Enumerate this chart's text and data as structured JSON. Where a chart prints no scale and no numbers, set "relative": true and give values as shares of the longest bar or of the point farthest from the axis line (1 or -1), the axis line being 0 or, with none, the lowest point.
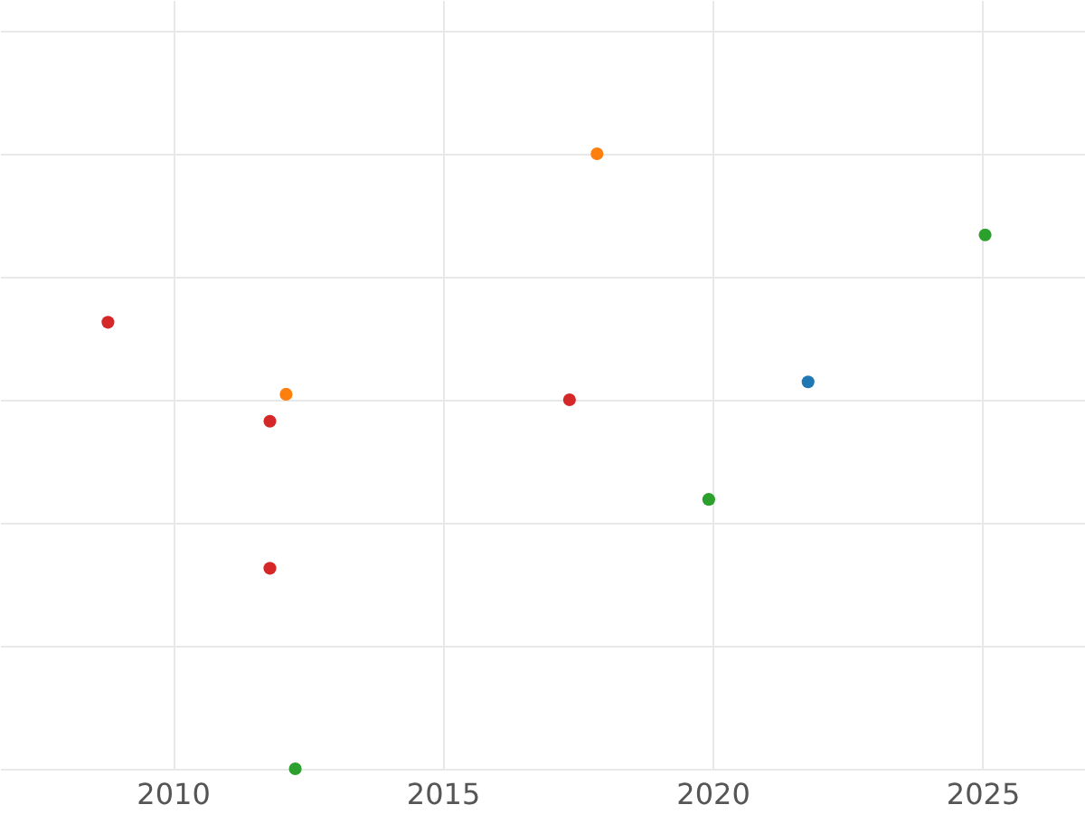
{
  "chart_data": {
    "type": "scatter",
    "relative": true,
    "xlim": [
      2006.8,
      2026.9
    ],
    "xticks": [
      2010,
      2015,
      2020,
      2025
    ],
    "grid": true,
    "legend": false,
    "marker": "circle",
    "series": [
      {
        "color": "#1f77b4",
        "x": [
          2021.77
        ],
        "values": [
          0.629
        ]
      },
      {
        "color": "#ff7f0e",
        "x": [
          2017.86,
          2012.1
        ],
        "values": [
          1.0,
          0.609
        ]
      },
      {
        "color": "#2ca02c",
        "x": [
          2025.05,
          2019.93,
          2012.27
        ],
        "values": [
          0.868,
          0.438,
          0
        ]
      },
      {
        "color": "#d62728",
        "x": [
          2008.8,
          2011.8,
          2017.35,
          2011.8
        ],
        "values": [
          0.726,
          0.565,
          0.6,
          0.326
        ]
      }
    ]
  }
}
